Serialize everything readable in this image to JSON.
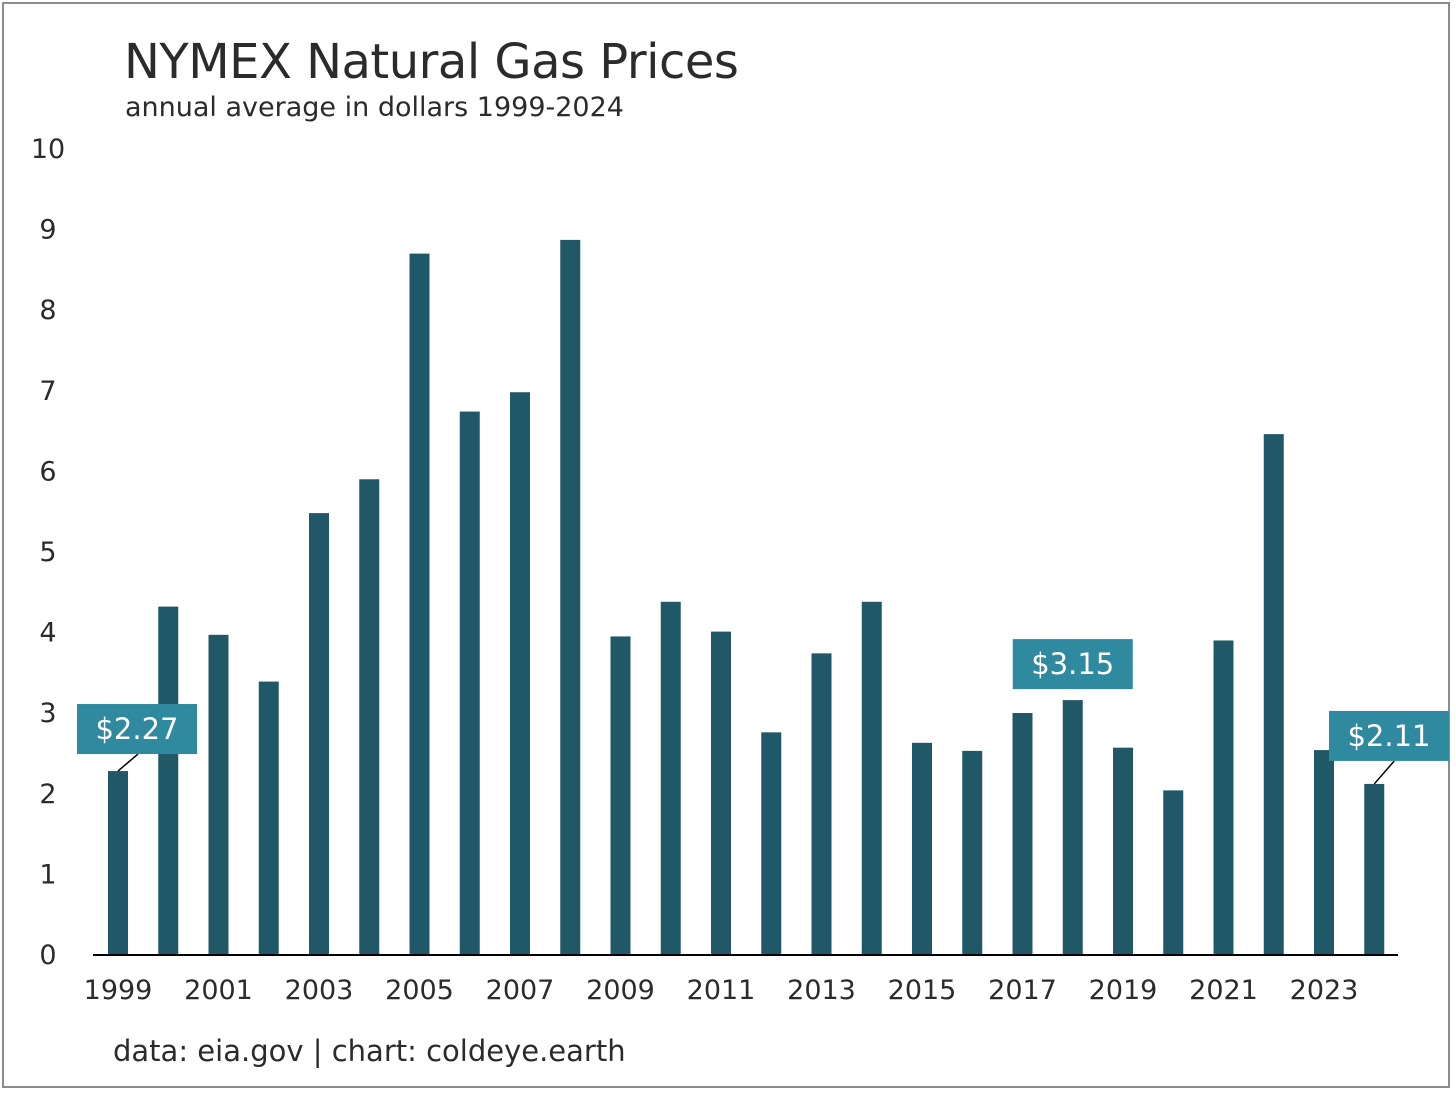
{
  "title": "NYMEX Natural Gas Prices",
  "subtitle": "annual average in dollars 1999-2024",
  "source": "data: eia.gov | chart: coldeye.earth",
  "colors": {
    "bar": "#215868",
    "callout": "#2f8aa0",
    "axis": "#000000",
    "text": "#2b2b2b"
  },
  "chart_data": {
    "type": "bar",
    "title": "NYMEX Natural Gas Prices",
    "subtitle": "annual average in dollars 1999-2024",
    "categories": [
      "1999",
      "2000",
      "2001",
      "2002",
      "2003",
      "2004",
      "2005",
      "2006",
      "2007",
      "2008",
      "2009",
      "2010",
      "2011",
      "2012",
      "2013",
      "2014",
      "2015",
      "2016",
      "2017",
      "2018",
      "2019",
      "2020",
      "2021",
      "2022",
      "2023",
      "2024"
    ],
    "values": [
      2.27,
      4.31,
      3.96,
      3.38,
      5.47,
      5.89,
      8.69,
      6.73,
      6.97,
      8.86,
      3.94,
      4.37,
      4.0,
      2.75,
      3.73,
      4.37,
      2.62,
      2.52,
      2.99,
      3.15,
      2.56,
      2.03,
      3.89,
      6.45,
      2.53,
      2.11
    ],
    "x_tick_labels": [
      "1999",
      "2001",
      "2003",
      "2005",
      "2007",
      "2009",
      "2011",
      "2013",
      "2015",
      "2017",
      "2019",
      "2021",
      "2023"
    ],
    "y_ticks": [
      "0",
      "1",
      "2",
      "3",
      "4",
      "5",
      "6",
      "7",
      "8",
      "9",
      "10"
    ],
    "ylim": [
      0,
      10
    ],
    "xlabel": "",
    "ylabel": "",
    "grid": false,
    "legend": "none",
    "annotations": [
      {
        "category": "1999",
        "label": "$2.27",
        "placement": "above"
      },
      {
        "category": "2018",
        "label": "$3.15",
        "placement": "above"
      },
      {
        "category": "2024",
        "label": "$2.11",
        "placement": "above"
      }
    ]
  }
}
